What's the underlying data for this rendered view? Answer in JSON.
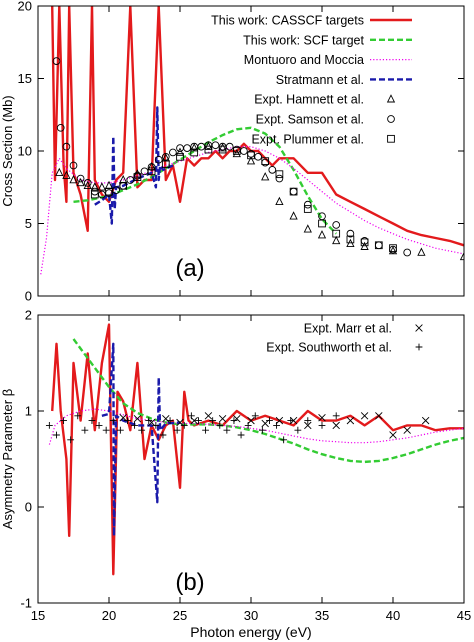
{
  "chart_data": [
    {
      "type": "line",
      "panel_label": "(a)",
      "xlim": [
        15,
        45
      ],
      "ylim": [
        0,
        20
      ],
      "xticks": [
        15,
        20,
        25,
        30,
        35,
        40,
        45
      ],
      "yticks": [
        0,
        5,
        10,
        15,
        20
      ],
      "xlabel": "",
      "ylabel": "Cross Section (Mb)",
      "legend_position": "top-right",
      "series": [
        {
          "name": "This work: CASSCF targets",
          "style": "solid",
          "color": "#e31a1c",
          "x": [
            16.0,
            16.2,
            16.5,
            16.8,
            17.0,
            17.2,
            17.5,
            18.0,
            18.5,
            18.8,
            19.0,
            19.5,
            20.0,
            20.5,
            21.0,
            21.5,
            22.0,
            22.5,
            23.0,
            23.5,
            24.0,
            24.5,
            25.0,
            25.5,
            26.0,
            26.5,
            27.0,
            27.5,
            28.0,
            28.5,
            29.0,
            29.5,
            30.0,
            30.5,
            31.0,
            31.5,
            32.0,
            32.5,
            33.0,
            34.0,
            35.0,
            36.0,
            37.0,
            38.0,
            39.0,
            40.0,
            41.0,
            42.0,
            43.0,
            44.0,
            45.0
          ],
          "y": [
            20.0,
            8.0,
            20.0,
            9.0,
            6.5,
            20.0,
            8.5,
            7.0,
            4.5,
            20.0,
            8.0,
            7.0,
            6.5,
            8.0,
            8.5,
            20.0,
            7.5,
            8.0,
            8.0,
            20.0,
            8.0,
            9.0,
            6.5,
            9.5,
            9.0,
            9.5,
            9.5,
            10.0,
            9.5,
            10.0,
            10.0,
            10.5,
            10.0,
            10.0,
            9.5,
            9.0,
            9.5,
            9.5,
            9.5,
            8.5,
            8.5,
            7.0,
            6.5,
            6.0,
            5.5,
            5.0,
            4.5,
            4.2,
            4.0,
            3.8,
            3.5
          ]
        },
        {
          "name": "This work: SCF target",
          "style": "dashed",
          "color": "#33cc33",
          "x": [
            17.5,
            18.5,
            20.0,
            21.0,
            22.0,
            23.0,
            24.0,
            25.0,
            26.0,
            27.0,
            28.0,
            29.0,
            30.0,
            31.0,
            32.0,
            33.0,
            34.0,
            35.0,
            36.0
          ],
          "y": [
            6.5,
            6.6,
            6.9,
            7.3,
            7.7,
            8.2,
            8.8,
            9.4,
            10.0,
            10.6,
            11.1,
            11.5,
            11.6,
            11.2,
            10.3,
            8.7,
            6.9,
            5.3,
            4.3
          ]
        },
        {
          "name": "Montuoro and Moccia",
          "style": "dotted",
          "color": "#ee00ee",
          "x": [
            15.2,
            15.6,
            16.0,
            16.5,
            17.0,
            18.0,
            19.0,
            20.0,
            21.0,
            22.0,
            23.0,
            24.0,
            25.0,
            26.0,
            27.0,
            28.0,
            29.0,
            30.0,
            31.0,
            32.0,
            33.0,
            34.0,
            35.0,
            36.0,
            37.0,
            38.0,
            39.0,
            40.0,
            41.0,
            42.0,
            43.0,
            44.0,
            45.0
          ],
          "y": [
            1.5,
            4.0,
            8.5,
            9.5,
            8.8,
            8.0,
            7.8,
            7.8,
            8.0,
            8.3,
            8.6,
            9.0,
            9.3,
            9.6,
            9.9,
            10.1,
            10.3,
            10.3,
            10.0,
            9.5,
            8.8,
            8.0,
            7.2,
            6.4,
            5.8,
            5.2,
            4.7,
            4.3,
            3.9,
            3.6,
            3.3,
            3.1,
            2.9
          ]
        },
        {
          "name": "Stratmann et al.",
          "style": "dashed",
          "color": "#1a1aaa",
          "x": [
            19.0,
            19.5,
            20.0,
            20.2,
            20.3,
            20.4,
            20.5,
            21.0,
            22.0,
            23.0,
            23.3,
            23.4,
            23.5,
            23.6,
            23.8,
            24.5
          ],
          "y": [
            6.3,
            6.6,
            7.0,
            5.0,
            11.0,
            6.0,
            7.5,
            7.6,
            8.1,
            8.5,
            7.5,
            13.0,
            8.0,
            9.0,
            8.7,
            9.0
          ]
        }
      ],
      "markers": [
        {
          "name": "Expt. Hamnett et al.",
          "marker": "triangle",
          "x": [
            16.5,
            17.0,
            17.5,
            18.0,
            18.5,
            19.0,
            19.5,
            20.0,
            21.0,
            22.0,
            23.0,
            24.0,
            25.0,
            26.0,
            27.0,
            28.0,
            29.0,
            30.0,
            31.0,
            32.0,
            33.0,
            34.0,
            35.0,
            36.0,
            37.0,
            38.0,
            40.0,
            42.0,
            45.0
          ],
          "y": [
            8.5,
            8.3,
            8.0,
            7.8,
            7.6,
            7.5,
            7.5,
            7.6,
            8.0,
            8.4,
            8.9,
            9.5,
            9.9,
            10.2,
            10.3,
            10.2,
            9.8,
            9.3,
            8.2,
            6.5,
            5.5,
            4.6,
            4.2,
            3.8,
            3.6,
            3.4,
            3.1,
            3.0,
            2.7
          ]
        },
        {
          "name": "Expt. Samson et al.",
          "marker": "circle",
          "x": [
            16.3,
            16.6,
            17.0,
            17.5,
            18.0,
            18.5,
            19.0,
            19.5,
            20.0,
            20.5,
            21.0,
            21.5,
            22.0,
            22.5,
            23.0,
            23.5,
            24.0,
            24.5,
            25.0,
            25.5,
            26.0,
            26.5,
            27.0,
            27.5,
            28.0,
            28.5,
            29.0,
            29.5,
            30.0,
            30.5,
            31.0,
            31.5,
            32.0,
            33.0,
            34.0,
            35.0,
            36.0,
            37.0,
            38.0,
            39.0,
            40.0,
            41.0
          ],
          "y": [
            16.2,
            11.6,
            10.3,
            9.0,
            8.1,
            7.8,
            7.2,
            7.0,
            7.1,
            7.3,
            7.6,
            8.0,
            8.3,
            8.6,
            8.9,
            9.4,
            9.6,
            9.9,
            10.2,
            10.2,
            10.3,
            10.3,
            10.4,
            10.4,
            10.3,
            10.3,
            10.1,
            10.0,
            9.8,
            9.6,
            9.2,
            8.7,
            8.1,
            7.2,
            6.3,
            5.5,
            4.9,
            4.3,
            3.8,
            3.5,
            3.2,
            3.0
          ]
        },
        {
          "name": "Expt. Plummer et al.",
          "marker": "square",
          "x": [
            19.0,
            20.0,
            21.0,
            22.0,
            23.0,
            24.0,
            25.0,
            26.0,
            27.0,
            28.0,
            29.0,
            30.0,
            31.0,
            32.0,
            33.0,
            34.0,
            35.0,
            36.0,
            37.0,
            38.0,
            39.0,
            40.0
          ],
          "y": [
            7.0,
            7.2,
            7.6,
            8.2,
            8.6,
            9.1,
            9.6,
            9.9,
            10.1,
            10.1,
            10.0,
            9.7,
            9.3,
            8.4,
            7.2,
            6.0,
            5.0,
            4.3,
            3.9,
            3.7,
            3.5,
            3.3
          ]
        }
      ]
    },
    {
      "type": "line",
      "panel_label": "(b)",
      "xlim": [
        15,
        45
      ],
      "ylim": [
        -1,
        2
      ],
      "xticks": [
        15,
        20,
        25,
        30,
        35,
        40,
        45
      ],
      "yticks": [
        -1,
        0,
        1,
        2
      ],
      "xlabel": "Photon energy (eV)",
      "ylabel": "Asymmetry Parameter β",
      "legend_position": "top-right",
      "series": [
        {
          "name": "",
          "style": "solid",
          "color": "#e31a1c",
          "x": [
            16.0,
            16.3,
            16.6,
            17.0,
            17.2,
            17.5,
            18.0,
            18.5,
            19.0,
            19.5,
            20.0,
            20.3,
            20.6,
            21.0,
            21.5,
            22.0,
            22.5,
            23.0,
            23.5,
            24.0,
            24.5,
            25.0,
            25.3,
            25.6,
            26.0,
            27.0,
            28.0,
            29.0,
            30.0,
            31.0,
            32.0,
            33.0,
            34.0,
            35.0,
            36.0,
            37.0,
            38.0,
            39.0,
            40.0,
            41.0,
            42.0,
            43.0,
            44.0,
            45.0
          ],
          "y": [
            1.0,
            1.7,
            1.0,
            0.5,
            -0.3,
            1.5,
            0.9,
            1.6,
            0.8,
            1.5,
            1.9,
            -0.7,
            1.2,
            1.1,
            0.8,
            1.5,
            0.5,
            0.85,
            0.7,
            0.85,
            0.9,
            0.2,
            1.2,
            0.9,
            0.85,
            0.9,
            0.85,
            1.0,
            0.9,
            0.95,
            0.9,
            0.85,
            1.0,
            0.9,
            0.9,
            0.95,
            0.85,
            0.95,
            0.8,
            0.85,
            0.85,
            0.8,
            0.82,
            0.82
          ]
        },
        {
          "name": "",
          "style": "dashed",
          "color": "#33cc33",
          "x": [
            17.5,
            18.0,
            19.0,
            20.0,
            21.0,
            22.0,
            23.0,
            24.0,
            25.0,
            26.0,
            27.0,
            28.0,
            29.0,
            30.0,
            31.0,
            32.0,
            33.0,
            34.0,
            35.0,
            36.0,
            37.0,
            38.0,
            39.0,
            40.0,
            41.0,
            42.0,
            43.0,
            44.0,
            45.0
          ],
          "y": [
            1.75,
            1.65,
            1.45,
            1.25,
            1.08,
            0.98,
            0.92,
            0.88,
            0.86,
            0.86,
            0.86,
            0.85,
            0.83,
            0.8,
            0.76,
            0.71,
            0.66,
            0.6,
            0.55,
            0.51,
            0.48,
            0.47,
            0.48,
            0.51,
            0.55,
            0.6,
            0.65,
            0.69,
            0.72
          ]
        },
        {
          "name": "",
          "style": "dotted",
          "color": "#ee00ee",
          "x": [
            15.8,
            16.2,
            17.0,
            18.0,
            19.0,
            20.0,
            21.0,
            22.0,
            23.0,
            24.0,
            25.0,
            26.0,
            27.0,
            28.0,
            29.0,
            30.0,
            31.0,
            32.0,
            33.0,
            34.0,
            35.0,
            36.0,
            37.0,
            38.0,
            39.0,
            40.0,
            41.0,
            42.0,
            43.0,
            44.0,
            45.0
          ],
          "y": [
            0.65,
            0.85,
            0.95,
            1.0,
            1.02,
            1.0,
            0.96,
            0.92,
            0.9,
            0.88,
            0.87,
            0.87,
            0.86,
            0.85,
            0.84,
            0.82,
            0.8,
            0.77,
            0.74,
            0.71,
            0.69,
            0.68,
            0.67,
            0.67,
            0.68,
            0.7,
            0.72,
            0.75,
            0.78,
            0.8,
            0.82
          ]
        },
        {
          "name": "",
          "style": "dashed",
          "color": "#1a1aaa",
          "x": [
            19.5,
            20.0,
            20.3,
            20.35,
            20.5,
            21.0,
            22.0,
            23.0,
            23.4,
            23.5,
            23.6,
            24.0,
            25.0
          ],
          "y": [
            0.95,
            0.97,
            1.7,
            -0.3,
            0.95,
            0.9,
            0.85,
            0.85,
            0.05,
            1.35,
            0.8,
            0.87,
            0.88
          ]
        }
      ],
      "markers": [
        {
          "name": "Expt. Marr et al.",
          "marker": "cross",
          "x": [
            21.0,
            22.0,
            23.0,
            24.0,
            25.0,
            26.0,
            27.0,
            28.0,
            29.0,
            30.0,
            31.0,
            32.0,
            33.0,
            34.0,
            35.0,
            36.0,
            37.0,
            38.0,
            39.0,
            40.0,
            41.0,
            42.3
          ],
          "y": [
            0.93,
            0.92,
            0.88,
            0.92,
            0.88,
            0.9,
            0.95,
            0.92,
            0.92,
            0.9,
            0.87,
            0.9,
            0.9,
            0.85,
            0.93,
            0.85,
            0.9,
            0.95,
            0.95,
            0.75,
            0.8,
            0.9
          ]
        },
        {
          "name": "Expt. Southworth et al.",
          "marker": "plus",
          "x": [
            15.8,
            16.3,
            16.8,
            17.3,
            17.8,
            18.3,
            18.8,
            19.3,
            19.8,
            20.3,
            20.8,
            21.3,
            21.8,
            22.3,
            22.8,
            23.3,
            23.8,
            24.3,
            24.8,
            25.3,
            25.8,
            26.3,
            26.8,
            27.3,
            27.8,
            28.3,
            28.8,
            29.3,
            29.8,
            30.3,
            30.8,
            31.3,
            31.8,
            32.3,
            32.8,
            33.3,
            34.0,
            35.0,
            36.0
          ],
          "y": [
            0.85,
            0.75,
            0.9,
            0.7,
            0.95,
            0.8,
            0.9,
            0.85,
            0.8,
            0.9,
            0.8,
            0.9,
            0.85,
            0.8,
            0.9,
            0.85,
            0.75,
            0.9,
            0.8,
            0.85,
            0.95,
            0.9,
            0.8,
            0.9,
            0.85,
            0.8,
            0.9,
            0.75,
            0.85,
            0.95,
            0.8,
            0.9,
            0.85,
            0.7,
            0.9,
            0.8,
            0.9,
            0.85,
            0.95
          ]
        }
      ]
    }
  ]
}
